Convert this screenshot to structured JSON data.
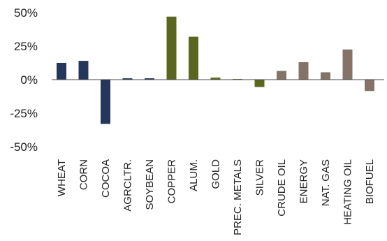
{
  "chart_data": {
    "type": "bar",
    "categories": [
      "WHEAT",
      "CORN",
      "COCOA",
      "AGRCLTR.",
      "SOYBEAN",
      "COPPER",
      "ALUM.",
      "GOLD",
      "PREC. METALS",
      "SILVER",
      "CRUDE OIL",
      "ENERGY",
      "NAT. GAS",
      "HEATING OIL",
      "BIOFUEL"
    ],
    "values": [
      12.5,
      14,
      -33,
      1,
      1,
      47,
      32,
      1.5,
      0.5,
      -5.5,
      6.5,
      13,
      5.5,
      22.5,
      -8.5
    ],
    "groups": [
      "agriculture",
      "agriculture",
      "agriculture",
      "agriculture",
      "agriculture",
      "metals",
      "metals",
      "metals",
      "metals",
      "metals",
      "energy",
      "energy",
      "energy",
      "energy",
      "energy"
    ],
    "group_colors": {
      "agriculture": "#243659",
      "metals": "#5a6620",
      "energy": "#857368"
    },
    "ylim": [
      -50,
      50
    ],
    "yticks": [
      50,
      25,
      0,
      -25,
      -50
    ],
    "ytick_labels": [
      "50%",
      "25%",
      "0%",
      "-25%",
      "-50%"
    ],
    "grid": false,
    "legend": "none",
    "title": "",
    "xlabel": "",
    "ylabel": ""
  }
}
